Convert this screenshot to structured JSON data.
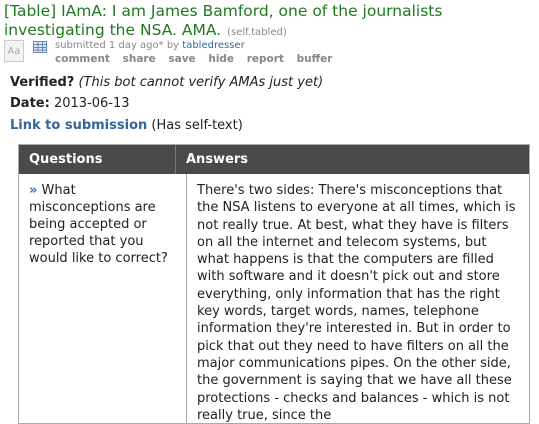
{
  "post": {
    "title": "[Table] IAmA: I am James Bamford, one of the journalists investigating the NSA. AMA.",
    "domain": "(self.tabled)",
    "thumb_text": "Aa",
    "submitted_prefix": "submitted 1 day ago* by",
    "author": "tabledresser",
    "buttons": [
      "comment",
      "share",
      "save",
      "hide",
      "report",
      "buffer"
    ]
  },
  "meta": {
    "verified_label": "Verified?",
    "verified_value": "(This bot cannot verify AMAs just yet)",
    "date_label": "Date:",
    "date_value": "2013-06-13",
    "link_label": "Link to submission",
    "link_note": "(Has self-text)"
  },
  "table": {
    "headers": {
      "questions": "Questions",
      "answers": "Answers"
    },
    "rows": [
      {
        "arrow": "»",
        "question": "What misconceptions are being accepted or reported that you would like to correct?",
        "answer": "There's two sides: There's misconceptions that the NSA listens to everyone at all times, which is not really true. At best, what they have is filters on all the internet and telecom systems, but what happens is that the computers are filled with software and it doesn't pick out and store everything, only information that has the right key words, target words, names, telephone information they're interested in. But in order to pick that out they need to have filters on all the major communications pipes. On the other side, the government is saying that we have all these protections - checks and balances - which is not really true, since the"
      }
    ]
  }
}
